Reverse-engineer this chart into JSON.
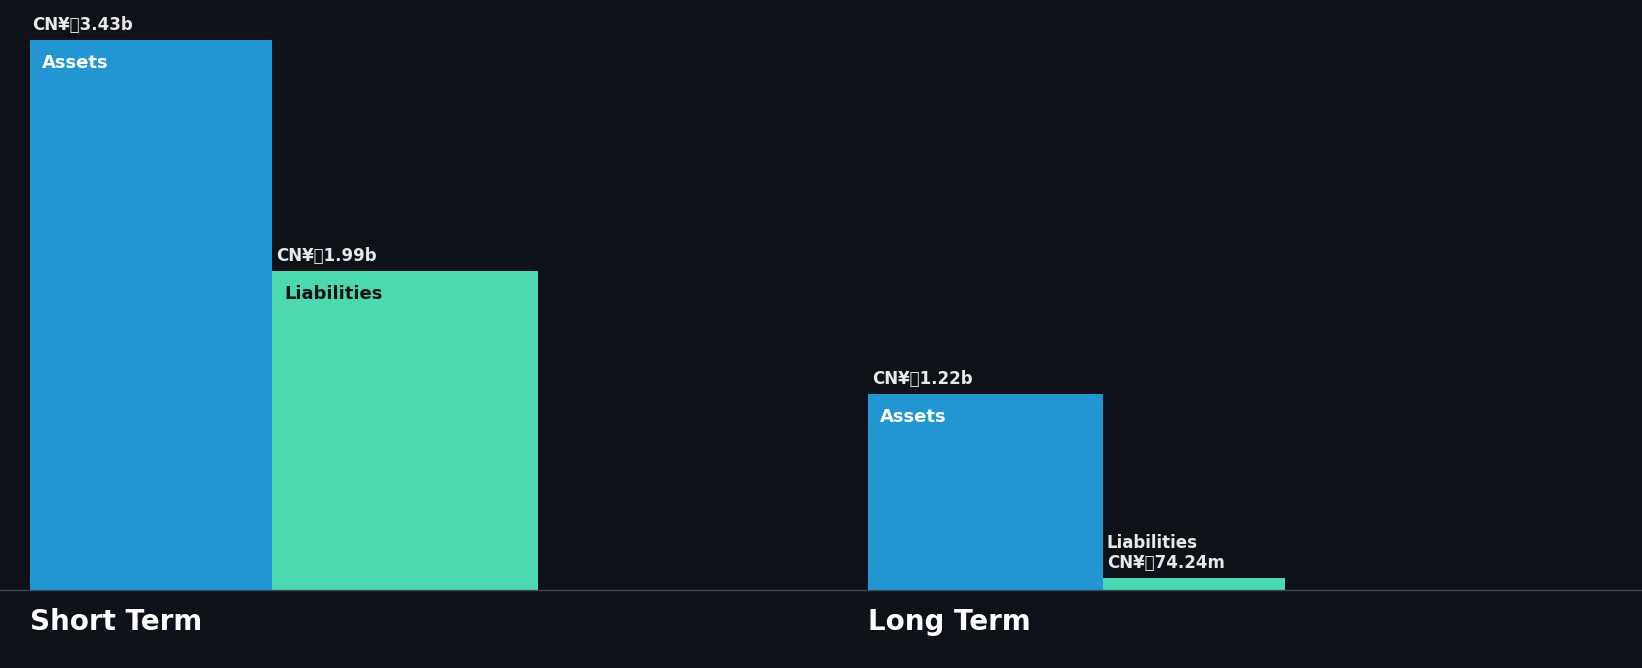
{
  "background_color": "#0e1117",
  "short_term": {
    "assets_value": 3.43,
    "liabilities_value": 1.99,
    "assets_label": "CN¥\u00003.43b",
    "liabilities_label": "CN¥\u00001.99b",
    "assets_color": "#2196d3",
    "liabilities_color": "#4dd9b0",
    "assets_text": "Assets",
    "liabilities_text": "Liabilities",
    "x_label": "Short Term"
  },
  "long_term": {
    "assets_value": 1.22,
    "liabilities_value": 0.07424,
    "assets_label": "CN¥\u00001.22b",
    "liabilities_label": "CN¥\u000074.24m",
    "assets_color": "#2196d3",
    "liabilities_color": "#4dd9b0",
    "assets_text": "Assets",
    "liabilities_text": "Liabilities",
    "x_label": "Long Term"
  },
  "max_value": 3.43,
  "label_fontsize": 12,
  "inner_label_fontsize": 13,
  "axis_label_fontsize": 20,
  "label_color": "#e8e8e8",
  "inner_label_color": "#ffffff",
  "inner_liabilities_color": "#0e1117"
}
